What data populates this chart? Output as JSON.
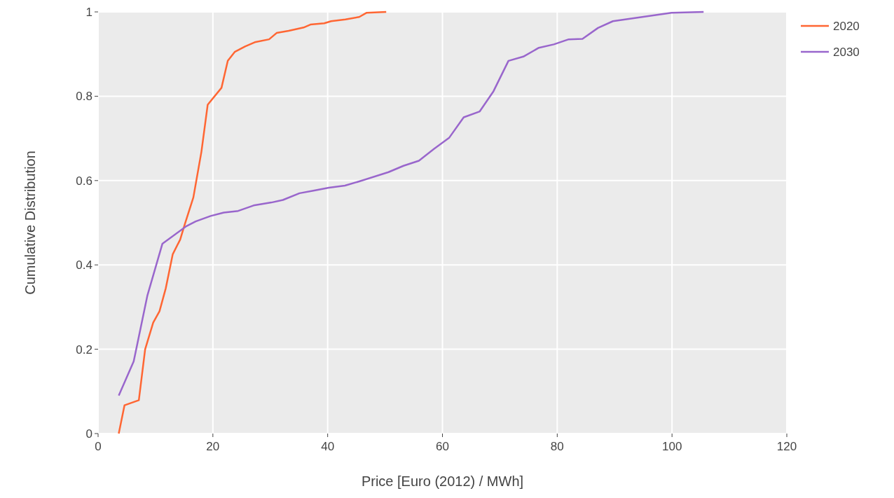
{
  "chart_data": {
    "type": "line",
    "xlabel": "Price [Euro (2012) / MWh]",
    "ylabel": "Cumulative Distribution",
    "xlim": [
      0,
      120
    ],
    "xticks": [
      0,
      20,
      40,
      60,
      80,
      100,
      120
    ],
    "ylim": [
      0,
      1
    ],
    "yticks": [
      0,
      0.2,
      0.4,
      0.6,
      0.8,
      1
    ],
    "grid": true,
    "legend": "top right",
    "series": [
      {
        "name": "2020",
        "color": "#ff6633",
        "x": [
          3.6,
          4.6,
          7.1,
          8.2,
          9.6,
          10.7,
          11.8,
          13.0,
          14.3,
          15.1,
          16.6,
          18.0,
          19.1,
          21.5,
          22.6,
          23.8,
          25.6,
          27.3,
          29.8,
          31.1,
          33.2,
          35.8,
          37.0,
          39.4,
          40.6,
          43.1,
          45.5,
          46.8,
          50.2
        ],
        "values": [
          0.0,
          0.067,
          0.079,
          0.2,
          0.263,
          0.29,
          0.345,
          0.425,
          0.46,
          0.496,
          0.56,
          0.668,
          0.78,
          0.82,
          0.884,
          0.905,
          0.918,
          0.928,
          0.935,
          0.95,
          0.955,
          0.963,
          0.97,
          0.973,
          0.978,
          0.982,
          0.988,
          0.998,
          1.0
        ]
      },
      {
        "name": "2030",
        "color": "#9966cc",
        "x": [
          3.6,
          6.2,
          8.6,
          11.2,
          15.4,
          17.0,
          19.6,
          21.9,
          24.4,
          27.1,
          30.2,
          32.2,
          35.1,
          37.5,
          40.2,
          43.0,
          45.5,
          50.6,
          53.2,
          55.9,
          58.5,
          61.2,
          63.7,
          66.5,
          68.9,
          71.5,
          74.1,
          76.8,
          79.4,
          82.0,
          84.4,
          87.1,
          89.7,
          99.9,
          105.5
        ],
        "values": [
          0.09,
          0.171,
          0.328,
          0.45,
          0.492,
          0.503,
          0.516,
          0.524,
          0.528,
          0.541,
          0.548,
          0.554,
          0.57,
          0.576,
          0.583,
          0.588,
          0.598,
          0.62,
          0.635,
          0.647,
          0.675,
          0.702,
          0.75,
          0.764,
          0.812,
          0.884,
          0.894,
          0.915,
          0.923,
          0.935,
          0.936,
          0.962,
          0.978,
          0.998,
          1.0
        ]
      }
    ]
  }
}
